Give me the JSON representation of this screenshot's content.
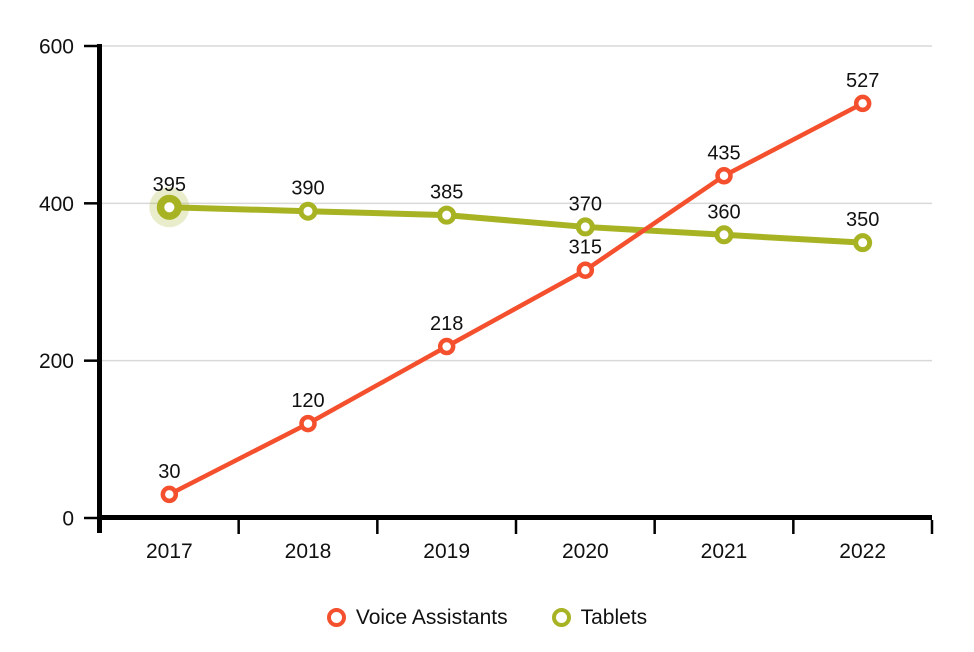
{
  "chart_data": {
    "type": "line",
    "categories": [
      "2017",
      "2018",
      "2019",
      "2020",
      "2021",
      "2022"
    ],
    "series": [
      {
        "name": "Voice Assistants",
        "color": "#F4502E",
        "values": [
          30,
          120,
          218,
          315,
          435,
          527
        ]
      },
      {
        "name": "Tablets",
        "color": "#A8B324",
        "values": [
          395,
          390,
          385,
          370,
          360,
          350
        ]
      }
    ],
    "ylim": [
      0,
      600
    ],
    "yticks": [
      0,
      200,
      400,
      600
    ],
    "grid": "horizontal-gridlines-at-200-400-600",
    "legend_position": "bottom",
    "data_labels": true,
    "highlight_point": {
      "series": "Tablets",
      "category": "2017",
      "value": 395
    },
    "axis_color": "#000000",
    "gridline_color": "#D9D9D9",
    "label_color": "#111111"
  }
}
